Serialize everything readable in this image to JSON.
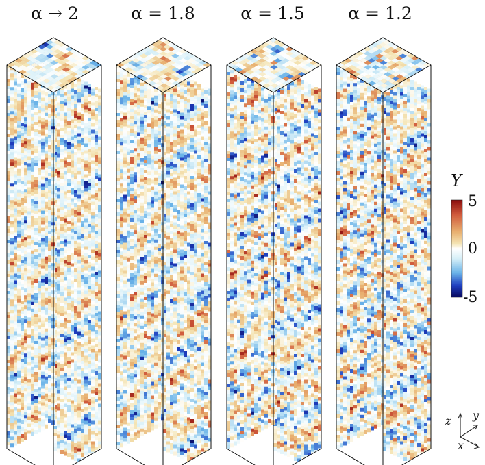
{
  "panels": [
    {
      "label": "α → 2",
      "alpha": 2.0
    },
    {
      "label": "α = 1.8",
      "alpha": 1.8
    },
    {
      "label": "α = 1.5",
      "alpha": 1.5
    },
    {
      "label": "α = 1.2",
      "alpha": 1.2
    }
  ],
  "colorbar": {
    "title": "Y",
    "ticks": [
      "5",
      "0",
      "-5"
    ],
    "range": [
      -5,
      5
    ],
    "colormap": [
      "#08085e",
      "#1f3fc0",
      "#6ab3e8",
      "#d8f0f8",
      "#ffffff",
      "#f4e4b4",
      "#e8b070",
      "#d05a3c",
      "#8a0c0c"
    ]
  },
  "axes_triad": {
    "z": "z",
    "y": "y",
    "x": "x"
  }
}
